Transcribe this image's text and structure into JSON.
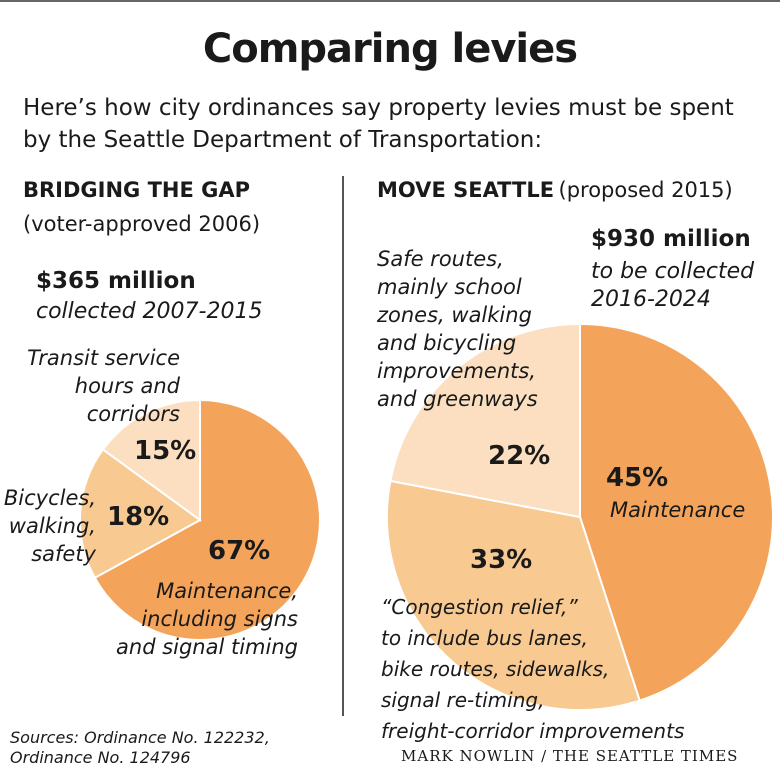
{
  "title": "Comparing levies",
  "intro": "Here’s how city ordinances say property levies must be spent by the Seattle Department of Transportation:",
  "colors": {
    "light": "#fbdfc0",
    "medium": "#f8c991",
    "dark": "#f4a45a",
    "stroke": "#ffffff"
  },
  "chart_data": [
    {
      "type": "pie",
      "title": "BRIDGING THE GAP",
      "subtitle": "(voter-approved 2006)",
      "total_label": "$365 million",
      "total_note": "collected 2007-2015",
      "slices": [
        {
          "name": "Maintenance, including signs and signal timing",
          "value": 67,
          "label": "67%",
          "color": "#f4a45a",
          "lines": [
            "Maintenance,",
            "including signs",
            "and signal timing"
          ]
        },
        {
          "name": "Bicycles, walking, safety",
          "value": 18,
          "label": "18%",
          "color": "#f8c991",
          "lines": [
            "Bicycles,",
            "walking,",
            "safety"
          ]
        },
        {
          "name": "Transit service hours and corridors",
          "value": 15,
          "label": "15%",
          "color": "#fbdfc0",
          "lines": [
            "Transit service",
            "hours and",
            "corridors"
          ]
        }
      ]
    },
    {
      "type": "pie",
      "title": "MOVE SEATTLE",
      "subtitle": "(proposed 2015)",
      "total_label": "$930 million",
      "total_note": "to be collected 2016-2024",
      "total_note_lines": [
        "to be collected",
        "2016-2024"
      ],
      "slices": [
        {
          "name": "Maintenance",
          "value": 45,
          "label": "45%",
          "color": "#f4a45a",
          "lines": [
            "Maintenance"
          ]
        },
        {
          "name": "“Congestion relief,” to include bus lanes, bike routes, sidewalks, signal re-timing, freight-corridor improvements",
          "value": 33,
          "label": "33%",
          "color": "#f8c991",
          "lines": [
            "“Congestion relief,”",
            "to include bus lanes,",
            "bike routes, sidewalks,",
            "signal re-timing,",
            "freight-corridor improvements"
          ]
        },
        {
          "name": "Safe routes, mainly school zones, walking and bicycling improvements, and greenways",
          "value": 22,
          "label": "22%",
          "color": "#fbdfc0",
          "lines": [
            "Safe routes,",
            "mainly school",
            "zones, walking",
            "and bicycling",
            "improvements,",
            "and greenways"
          ]
        }
      ]
    }
  ],
  "sources": [
    "Sources: Ordinance No. 122232,",
    "Ordinance No. 124796"
  ],
  "credit": "MARK NOWLIN / THE SEATTLE TIMES"
}
